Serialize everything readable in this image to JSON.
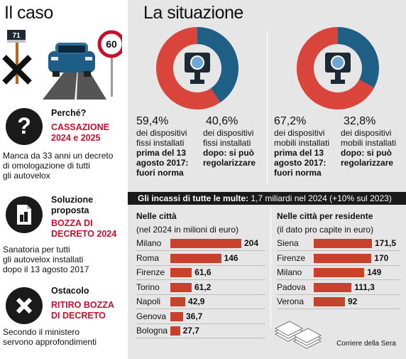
{
  "left": {
    "title": "Il caso",
    "speed_limit": "60",
    "camera_number": "71",
    "blocks": [
      {
        "heading": "Perché?",
        "red_lines": [
          "CASSAZIONE",
          "2024 e 2025"
        ],
        "text_lines": [
          "Manca da 33 anni un decreto",
          "di omologazione di tutti",
          "gli autovelox"
        ]
      },
      {
        "heading": "Soluzione",
        "heading2": "proposta",
        "red_lines": [
          "BOZZA DI",
          "DECRETO 2024"
        ],
        "text_lines": [
          "Sanatoria per tutti",
          "gli autovelox installati",
          "dopo il 13 agosto 2017"
        ]
      },
      {
        "heading": "Ostacolo",
        "red_lines": [
          "RITIRO BOZZA",
          "DI DECRETO"
        ],
        "text_lines": [
          "Secondo il ministero",
          "servono approfondimenti"
        ]
      }
    ]
  },
  "right": {
    "title": "La situazione",
    "donuts": [
      {
        "a_pct": "59,4%",
        "b_pct": "40,6%",
        "a_value": 59.4,
        "b_value": 40.6,
        "a_lines": [
          "dei dispositivi",
          "fissi installati",
          "prima del 13",
          "agosto 2017:",
          "fuori norma"
        ],
        "b_lines": [
          "dei dispositivi",
          "fissi installati",
          "dopo: si può",
          "regolarizzare"
        ]
      },
      {
        "a_pct": "67,2%",
        "b_pct": "32,8%",
        "a_value": 67.2,
        "b_value": 32.8,
        "a_lines": [
          "dei dispositivi",
          "mobili installati",
          "prima del 13",
          "agosto 2017:",
          "fuori norma"
        ],
        "b_lines": [
          "dei dispositivi",
          "mobili installati",
          "dopo: si può",
          "regolarizzare"
        ]
      }
    ],
    "banner_bold": "Gli incassi di tutte le multe:",
    "banner_rest": "1,7 miliardi nel 2024 (+10% sul 2023)",
    "credit": "Corriere della Sera"
  },
  "colors": {
    "red": "#d9453b",
    "blue": "#1f5f86",
    "bar": "#c8412c",
    "accent": "#c8102e"
  },
  "chart_data": [
    {
      "type": "bar",
      "title": "Nelle città",
      "subtitle": "(nel 2024 in milioni di euro)",
      "categories": [
        "Milano",
        "Roma",
        "Firenze",
        "Torino",
        "Napoli",
        "Genova",
        "Bologna"
      ],
      "values": [
        204,
        146,
        61.6,
        61.2,
        42.9,
        36.7,
        27.7
      ],
      "labels": [
        "204",
        "146",
        "61,6",
        "61,2",
        "42,9",
        "36,7",
        "27,7"
      ]
    },
    {
      "type": "bar",
      "title": "Nelle città per residente",
      "subtitle": "(il dato pro capite in euro)",
      "categories": [
        "Siena",
        "Firenze",
        "Milano",
        "Padova",
        "Verona"
      ],
      "values": [
        171.5,
        170,
        149,
        111.3,
        92
      ],
      "labels": [
        "171,5",
        "170",
        "149",
        "111,3",
        "92"
      ]
    }
  ]
}
